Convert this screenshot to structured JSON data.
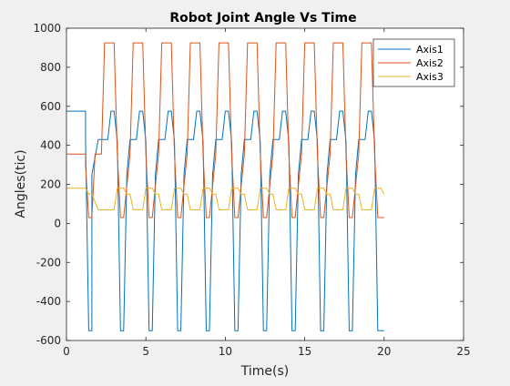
{
  "chart_data": {
    "type": "line",
    "title": "Robot Joint Angle Vs Time",
    "xlabel": "Time(s)",
    "ylabel": "Angles(tic)",
    "xlim": [
      0,
      25
    ],
    "ylim": [
      -600,
      1000
    ],
    "xticks": [
      0,
      5,
      10,
      15,
      20,
      25
    ],
    "yticks": [
      -600,
      -400,
      -200,
      0,
      200,
      400,
      600,
      800,
      1000
    ],
    "grid": false,
    "legend_position": "top-right",
    "series": [
      {
        "name": "Axis1",
        "color": "#0072BD",
        "x": [
          0,
          1.2,
          1.2,
          1.4,
          1.6,
          1.6,
          2.0,
          2.2,
          2.2,
          2.6,
          2.8,
          3.0,
          3.2,
          3.4,
          3.6,
          3.8,
          4.0,
          4.4,
          4.6,
          4.8,
          5.0,
          5.2,
          5.4,
          5.6,
          5.8,
          6.2,
          6.4,
          6.6,
          6.8,
          7.0,
          7.2,
          7.4,
          7.6,
          8.0,
          8.2,
          8.4,
          8.6,
          8.8,
          9.0,
          9.2,
          9.4,
          9.8,
          10.0,
          10.2,
          10.4,
          10.6,
          10.8,
          11.0,
          11.2,
          11.6,
          11.8,
          12.0,
          12.2,
          12.4,
          12.6,
          12.8,
          13.0,
          13.4,
          13.6,
          13.8,
          14.0,
          14.2,
          14.4,
          14.6,
          14.8,
          15.2,
          15.4,
          15.6,
          15.8,
          16.0,
          16.2,
          16.4,
          16.6,
          17.0,
          17.2,
          17.4,
          17.6,
          17.8,
          18.0,
          18.2,
          18.4,
          18.8,
          19.0,
          19.2,
          19.4,
          19.6,
          19.8,
          20.0
        ],
        "y": [
          575,
          575,
          420,
          -550,
          -550,
          250,
          430,
          430,
          430,
          430,
          575,
          575,
          420,
          -550,
          -550,
          250,
          430,
          430,
          575,
          575,
          420,
          -550,
          -550,
          250,
          430,
          430,
          575,
          575,
          420,
          -550,
          -550,
          250,
          430,
          430,
          575,
          575,
          420,
          -550,
          -550,
          250,
          430,
          430,
          575,
          575,
          420,
          -550,
          -550,
          250,
          430,
          430,
          575,
          575,
          420,
          -550,
          -550,
          250,
          430,
          430,
          575,
          575,
          420,
          -550,
          -550,
          250,
          430,
          430,
          575,
          575,
          420,
          -550,
          -550,
          250,
          430,
          430,
          575,
          575,
          420,
          -550,
          -550,
          250,
          430,
          430,
          575,
          575,
          420,
          -550,
          -550,
          -550
        ]
      },
      {
        "name": "Axis2",
        "color": "#D95319",
        "x": [
          0,
          1.2,
          1.2,
          1.4,
          1.6,
          1.8,
          2.2,
          2.4,
          2.6,
          3.0,
          3.2,
          3.4,
          3.6,
          4.0,
          4.2,
          4.4,
          4.8,
          5.0,
          5.2,
          5.4,
          5.8,
          6.0,
          6.2,
          6.6,
          6.8,
          7.0,
          7.2,
          7.6,
          7.8,
          8.0,
          8.4,
          8.6,
          8.8,
          9.0,
          9.4,
          9.6,
          9.8,
          10.2,
          10.4,
          10.6,
          10.8,
          11.2,
          11.4,
          11.6,
          12.0,
          12.2,
          12.4,
          12.6,
          13.0,
          13.2,
          13.4,
          13.8,
          14.0,
          14.2,
          14.4,
          14.8,
          15.0,
          15.2,
          15.6,
          15.8,
          16.0,
          16.2,
          16.6,
          16.8,
          17.0,
          17.4,
          17.6,
          17.8,
          18.0,
          18.4,
          18.6,
          18.8,
          19.2,
          19.4,
          19.6,
          19.8,
          20.0
        ],
        "y": [
          355,
          355,
          300,
          30,
          30,
          355,
          355,
          925,
          925,
          925,
          355,
          30,
          30,
          355,
          925,
          925,
          925,
          355,
          30,
          30,
          355,
          925,
          925,
          925,
          355,
          30,
          30,
          355,
          925,
          925,
          925,
          355,
          30,
          30,
          355,
          925,
          925,
          925,
          355,
          30,
          30,
          355,
          925,
          925,
          925,
          355,
          30,
          30,
          355,
          925,
          925,
          925,
          355,
          30,
          30,
          355,
          925,
          925,
          925,
          355,
          30,
          30,
          355,
          925,
          925,
          925,
          355,
          30,
          30,
          355,
          925,
          925,
          925,
          355,
          30,
          30,
          30
        ]
      },
      {
        "name": "Axis3",
        "color": "#EDB120",
        "x": [
          0,
          1.2,
          1.4,
          1.6,
          2.0,
          2.2,
          3.0,
          3.2,
          3.6,
          3.8,
          4.0,
          4.2,
          4.8,
          5.0,
          5.4,
          5.6,
          5.8,
          6.0,
          6.6,
          6.8,
          7.2,
          7.4,
          7.6,
          7.8,
          8.4,
          8.6,
          9.0,
          9.2,
          9.4,
          9.6,
          10.2,
          10.4,
          10.8,
          11.0,
          11.2,
          11.4,
          12.0,
          12.2,
          12.6,
          12.8,
          13.0,
          13.2,
          13.8,
          14.0,
          14.4,
          14.6,
          14.8,
          15.0,
          15.6,
          15.8,
          16.2,
          16.4,
          16.6,
          16.8,
          17.4,
          17.6,
          18.0,
          18.2,
          18.4,
          18.6,
          19.2,
          19.4,
          19.8,
          20.0
        ],
        "y": [
          180,
          180,
          150,
          150,
          70,
          70,
          70,
          180,
          180,
          150,
          150,
          70,
          70,
          180,
          180,
          150,
          150,
          70,
          70,
          180,
          180,
          150,
          150,
          70,
          70,
          180,
          180,
          150,
          150,
          70,
          70,
          180,
          180,
          150,
          150,
          70,
          70,
          180,
          180,
          150,
          150,
          70,
          70,
          180,
          180,
          150,
          150,
          70,
          70,
          180,
          180,
          150,
          150,
          70,
          70,
          180,
          180,
          150,
          150,
          70,
          70,
          180,
          180,
          150
        ]
      }
    ]
  }
}
